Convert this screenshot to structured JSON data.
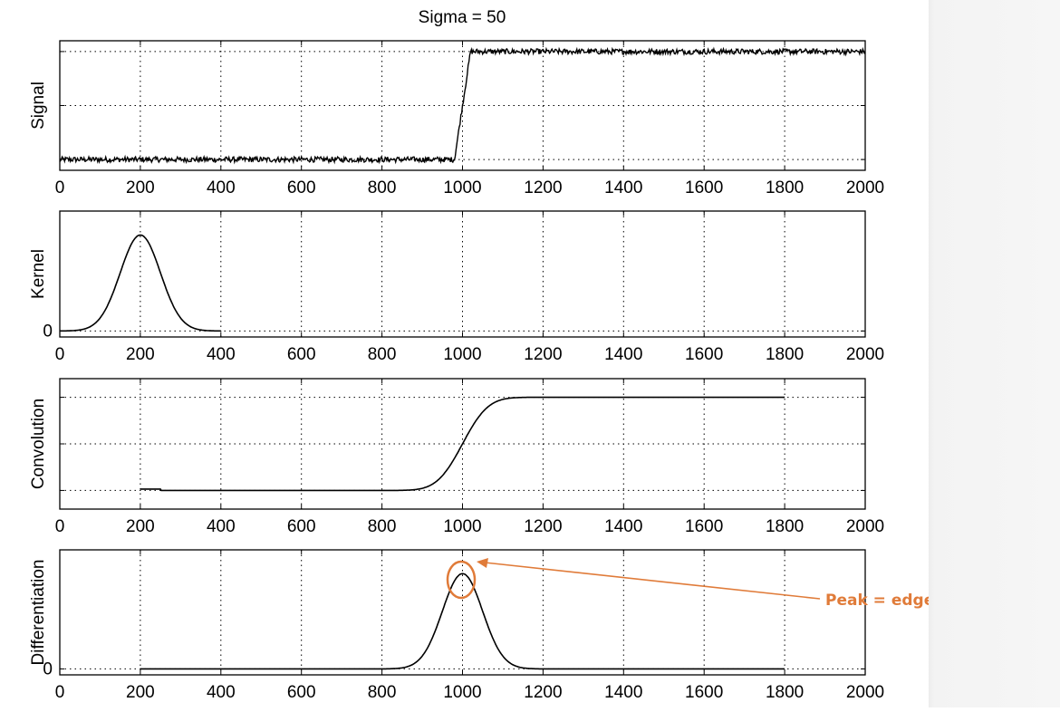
{
  "figure": {
    "title": "Sigma = 50"
  },
  "annotation": {
    "text": "Peak = edge location",
    "color": "#e07b39"
  },
  "chart_data": [
    {
      "type": "line",
      "ylabel": "Signal",
      "xlim": [
        0,
        2000
      ],
      "xticks": [
        0,
        200,
        400,
        600,
        800,
        1000,
        1200,
        1400,
        1600,
        1800,
        2000
      ],
      "ylim": [
        -0.1,
        1.1
      ],
      "yticks": [
        0,
        0.5,
        1
      ],
      "ytick_labels": [
        "",
        "",
        ""
      ],
      "grid": true,
      "series": [
        {
          "x": [
            0,
            980,
            1000,
            1020,
            2000
          ],
          "y": [
            0,
            0,
            0.5,
            1,
            1
          ],
          "noise": 0.025
        }
      ]
    },
    {
      "type": "line",
      "ylabel": "Kernel",
      "xlim": [
        0,
        2000
      ],
      "xticks": [
        0,
        200,
        400,
        600,
        800,
        1000,
        1200,
        1400,
        1600,
        1800,
        2000
      ],
      "ylim": [
        -0.05,
        1.0
      ],
      "yticks": [
        0
      ],
      "ytick_labels": [
        "0"
      ],
      "grid": true,
      "series": [
        {
          "shape": "gaussian",
          "x_range": [
            0,
            400
          ],
          "center": 200,
          "sigma": 50,
          "peak": 0.8
        }
      ]
    },
    {
      "type": "line",
      "ylabel": "Convolution",
      "xlim": [
        0,
        2000
      ],
      "xticks": [
        0,
        200,
        400,
        600,
        800,
        1000,
        1200,
        1400,
        1600,
        1800,
        2000
      ],
      "ylim": [
        -0.2,
        1.2
      ],
      "yticks": [
        0,
        0.5,
        1
      ],
      "ytick_labels": [
        "",
        "",
        ""
      ],
      "grid": true,
      "series": [
        {
          "shape": "erf-step",
          "x_range": [
            200,
            1800
          ],
          "center": 1000,
          "sigma": 50,
          "low": 0,
          "high": 1,
          "start_bump": [
            200,
            250,
            0.015
          ]
        }
      ]
    },
    {
      "type": "line",
      "ylabel": "Differentiation",
      "xlim": [
        0,
        2000
      ],
      "xticks": [
        0,
        200,
        400,
        600,
        800,
        1000,
        1200,
        1400,
        1600,
        1800,
        2000
      ],
      "ylim": [
        -0.05,
        1.0
      ],
      "yticks": [
        0
      ],
      "ytick_labels": [
        "0"
      ],
      "grid": true,
      "series": [
        {
          "shape": "gaussian",
          "x_range": [
            200,
            1800
          ],
          "center": 1000,
          "sigma": 50,
          "peak": 0.8
        }
      ]
    }
  ]
}
